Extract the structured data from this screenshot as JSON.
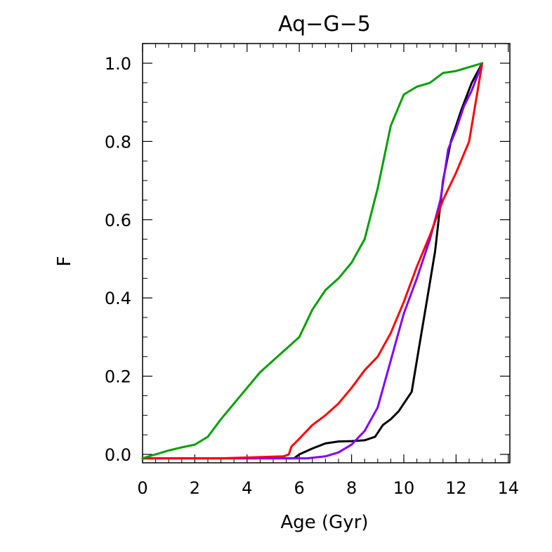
{
  "chart_data": {
    "type": "line",
    "title": "Aq−G−5",
    "xlabel": "Age (Gyr)",
    "ylabel": "F",
    "xlim": [
      0,
      14
    ],
    "ylim": [
      -0.02,
      1.05
    ],
    "x_ticks": [
      0,
      2,
      4,
      6,
      8,
      10,
      12,
      14
    ],
    "x_tick_labels": [
      "0",
      "2",
      "4",
      "6",
      "8",
      "10",
      "12",
      "14"
    ],
    "y_ticks": [
      0.0,
      0.2,
      0.4,
      0.6,
      0.8,
      1.0
    ],
    "y_tick_labels": [
      "0.0",
      "0.2",
      "0.4",
      "0.6",
      "0.8",
      "1.0"
    ],
    "grid": false,
    "series": [
      {
        "name": "black",
        "color": "#000000",
        "x": [
          0,
          2,
          4,
          5.8,
          6.0,
          6.5,
          7.0,
          7.5,
          8.0,
          8.5,
          8.9,
          9.2,
          9.5,
          9.8,
          10.0,
          10.3,
          10.6,
          10.9,
          11.2,
          11.5,
          11.8,
          12.2,
          12.6,
          13.0
        ],
        "y": [
          -0.01,
          -0.01,
          -0.01,
          -0.01,
          0.0,
          0.015,
          0.028,
          0.033,
          0.034,
          0.036,
          0.045,
          0.075,
          0.09,
          0.11,
          0.13,
          0.16,
          0.28,
          0.4,
          0.52,
          0.7,
          0.8,
          0.88,
          0.95,
          1.0
        ]
      },
      {
        "name": "purple",
        "color": "#8000ff",
        "x": [
          0,
          4,
          6.3,
          7.0,
          7.5,
          8.0,
          8.5,
          9.0,
          9.5,
          10.0,
          10.5,
          11.0,
          11.4,
          11.7,
          12.0,
          12.3,
          12.6,
          13.0
        ],
        "y": [
          -0.01,
          -0.01,
          -0.01,
          -0.005,
          0.005,
          0.025,
          0.06,
          0.12,
          0.24,
          0.36,
          0.45,
          0.55,
          0.65,
          0.78,
          0.83,
          0.89,
          0.93,
          1.0
        ]
      },
      {
        "name": "red",
        "color": "#ff0000",
        "x": [
          0,
          3,
          5.4,
          5.6,
          5.7,
          6.0,
          6.5,
          7.0,
          7.5,
          8.0,
          8.5,
          9.0,
          9.5,
          10.0,
          10.5,
          11.0,
          11.5,
          12.0,
          12.5,
          12.8,
          13.0
        ],
        "y": [
          -0.01,
          -0.01,
          -0.005,
          0.0,
          0.02,
          0.04,
          0.075,
          0.1,
          0.13,
          0.17,
          0.215,
          0.25,
          0.31,
          0.39,
          0.48,
          0.56,
          0.65,
          0.72,
          0.8,
          0.92,
          1.0
        ]
      },
      {
        "name": "green",
        "color": "#00a000",
        "x": [
          0,
          0.5,
          1.0,
          1.5,
          2.0,
          2.5,
          3.0,
          3.5,
          4.0,
          4.5,
          5.0,
          5.5,
          6.0,
          6.5,
          7.0,
          7.5,
          8.0,
          8.5,
          9.0,
          9.5,
          10.0,
          10.5,
          11.0,
          11.5,
          12.0,
          12.5,
          13.0
        ],
        "y": [
          -0.01,
          0.0,
          0.01,
          0.018,
          0.025,
          0.045,
          0.09,
          0.13,
          0.17,
          0.21,
          0.24,
          0.27,
          0.3,
          0.37,
          0.42,
          0.45,
          0.49,
          0.55,
          0.68,
          0.84,
          0.92,
          0.94,
          0.95,
          0.975,
          0.98,
          0.99,
          1.0
        ]
      }
    ]
  }
}
